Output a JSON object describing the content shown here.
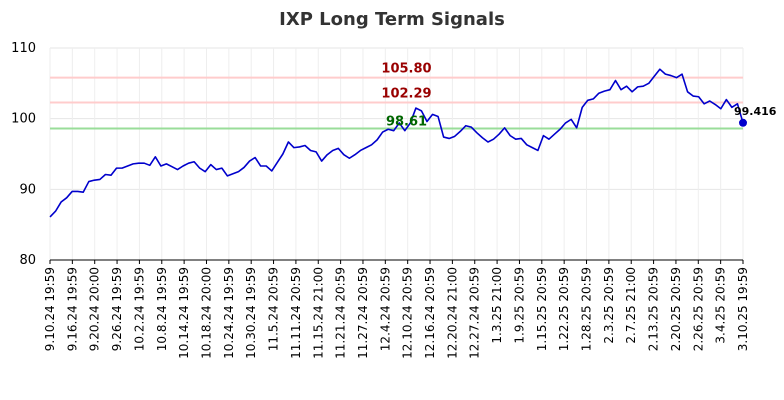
{
  "chart_data": {
    "type": "line",
    "title": "IXP Long Term Signals",
    "xlabel": "",
    "ylabel": "",
    "ylim": [
      80,
      110
    ],
    "yticks": [
      80,
      90,
      100,
      110
    ],
    "grid": true,
    "x_tick_labels": [
      "9.10.24 19:59",
      "9.16.24 19:59",
      "9.20.24 20:00",
      "9.26.24 19:59",
      "10.2.24 19:59",
      "10.8.24 19:59",
      "10.14.24 19:59",
      "10.18.24 20:00",
      "10.24.24 19:59",
      "10.30.24 19:59",
      "11.5.24 20:59",
      "11.11.24 20:59",
      "11.15.24 21:00",
      "11.21.24 20:59",
      "11.27.24 20:59",
      "12.4.24 20:59",
      "12.10.24 20:59",
      "12.16.24 20:59",
      "12.20.24 21:00",
      "12.27.24 20:59",
      "1.3.25 21:00",
      "1.9.25 20:59",
      "1.15.25 20:59",
      "1.22.25 20:59",
      "1.28.25 20:59",
      "2.3.25 20:59",
      "2.7.25 21:00",
      "2.13.25 20:59",
      "2.20.25 20:59",
      "2.26.25 20:59",
      "3.4.25 20:59",
      "3.10.25 19:59"
    ],
    "series": [
      {
        "color": "#0000cc",
        "values": [
          86.1,
          86.9,
          88.2,
          88.8,
          89.7,
          89.7,
          89.6,
          91.1,
          91.3,
          91.4,
          92.1,
          92.0,
          93.0,
          93.0,
          93.3,
          93.6,
          93.7,
          93.7,
          93.4,
          94.6,
          93.3,
          93.6,
          93.2,
          92.8,
          93.3,
          93.7,
          93.9,
          93.0,
          92.5,
          93.5,
          92.8,
          93.0,
          91.9,
          92.2,
          92.5,
          93.1,
          94.0,
          94.5,
          93.3,
          93.3,
          92.6,
          93.8,
          95.0,
          96.7,
          95.9,
          96.0,
          96.2,
          95.5,
          95.3,
          94.0,
          94.9,
          95.5,
          95.8,
          94.9,
          94.4,
          94.9,
          95.5,
          95.9,
          96.3,
          97.0,
          98.1,
          98.5,
          98.3,
          99.4,
          98.3,
          99.4,
          101.5,
          101.1,
          99.6,
          100.6,
          100.3,
          97.4,
          97.2,
          97.5,
          98.2,
          99.0,
          98.8,
          98.0,
          97.3,
          96.7,
          97.1,
          97.8,
          98.7,
          97.6,
          97.1,
          97.2,
          96.3,
          95.9,
          95.5,
          97.6,
          97.1,
          97.8,
          98.5,
          99.4,
          99.9,
          98.7,
          101.6,
          102.6,
          102.8,
          103.6,
          103.9,
          104.1,
          105.4,
          104.1,
          104.6,
          103.8,
          104.5,
          104.6,
          105.0,
          106.0,
          107.0,
          106.3,
          106.1,
          105.8,
          106.3,
          103.8,
          103.2,
          103.1,
          102.1,
          102.5,
          102.0,
          101.4,
          102.7,
          101.6,
          102.1,
          99.416
        ]
      }
    ],
    "annotations": [
      {
        "text": "105.80",
        "value": 105.8,
        "line_color": "#ffcccc",
        "text_color": "#990000"
      },
      {
        "text": "102.29",
        "value": 102.29,
        "line_color": "#ffcccc",
        "text_color": "#990000"
      },
      {
        "text": "98.61",
        "value": 98.61,
        "line_color": "#99dd99",
        "text_color": "#006600"
      }
    ],
    "last_value_label": "99.416",
    "last_point_color": "#0000cc"
  }
}
